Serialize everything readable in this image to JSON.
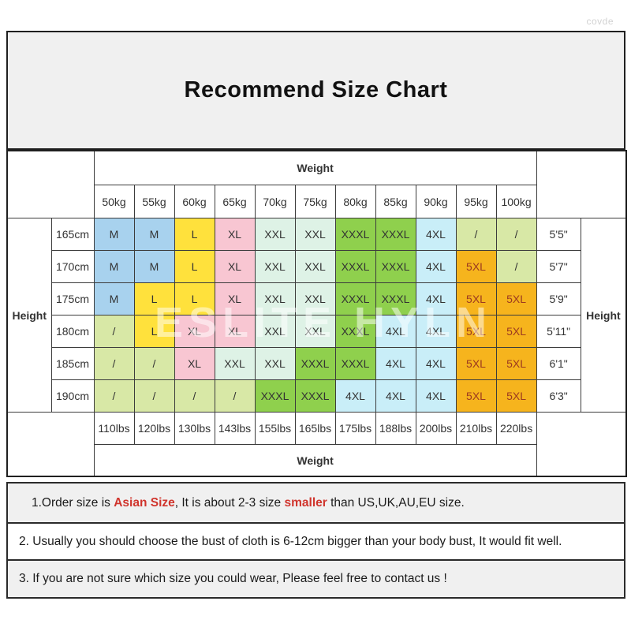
{
  "title": "Recommend Size Chart",
  "watermarks": {
    "corner": "covde",
    "center": "ESLITE HYLN"
  },
  "table": {
    "weight_header": "Weight",
    "weight_footer": "Weight",
    "height_label_left": "Height",
    "height_label_right": "Height",
    "weights_kg": [
      "50kg",
      "55kg",
      "60kg",
      "65kg",
      "70kg",
      "75kg",
      "80kg",
      "85kg",
      "90kg",
      "95kg",
      "100kg"
    ],
    "weights_lbs": [
      "110lbs",
      "120lbs",
      "130lbs",
      "143lbs",
      "155lbs",
      "165lbs",
      "175lbs",
      "188lbs",
      "200lbs",
      "210lbs",
      "220lbs"
    ],
    "rows": [
      {
        "height_cm": "165cm",
        "height_ft": "5'5\"",
        "sizes": [
          "M",
          "M",
          "L",
          "XL",
          "XXL",
          "XXL",
          "XXXL",
          "XXXL",
          "4XL",
          "/",
          "/"
        ]
      },
      {
        "height_cm": "170cm",
        "height_ft": "5'7\"",
        "sizes": [
          "M",
          "M",
          "L",
          "XL",
          "XXL",
          "XXL",
          "XXXL",
          "XXXL",
          "4XL",
          "5XL",
          "/"
        ]
      },
      {
        "height_cm": "175cm",
        "height_ft": "5'9\"",
        "sizes": [
          "M",
          "L",
          "L",
          "XL",
          "XXL",
          "XXL",
          "XXXL",
          "XXXL",
          "4XL",
          "5XL",
          "5XL"
        ]
      },
      {
        "height_cm": "180cm",
        "height_ft": "5'11\"",
        "sizes": [
          "/",
          "L",
          "XL",
          "XL",
          "XXL",
          "XXL",
          "XXXL",
          "4XL",
          "4XL",
          "5XL",
          "5XL"
        ]
      },
      {
        "height_cm": "185cm",
        "height_ft": "6'1\"",
        "sizes": [
          "/",
          "/",
          "XL",
          "XXL",
          "XXL",
          "XXXL",
          "XXXL",
          "4XL",
          "4XL",
          "5XL",
          "5XL"
        ]
      },
      {
        "height_cm": "190cm",
        "height_ft": "6'3\"",
        "sizes": [
          "/",
          "/",
          "/",
          "/",
          "XXXL",
          "XXXL",
          "4XL",
          "4XL",
          "4XL",
          "5XL",
          "5XL"
        ]
      }
    ]
  },
  "size_colors": {
    "M": "#a8d2ee",
    "L": "#ffe13c",
    "XL": "#f8c6d2",
    "XXL": "#def2e6",
    "XXXL": "#8fd04d",
    "4XL": "#c9eef8",
    "5XL": "#f6b41d",
    "/": "#d8e8a6"
  },
  "size_text_colors": {
    "default": "#333333",
    "5XL": "#9c3a20"
  },
  "notes": [
    [
      {
        "t": "1.Order size is "
      },
      {
        "t": "Asian Size",
        "red": true
      },
      {
        "t": ", It is about 2-3 size "
      },
      {
        "t": "smaller",
        "red": true
      },
      {
        "t": " than US,UK,AU,EU size."
      }
    ],
    [
      {
        "t": "2. Usually you should choose the bust of cloth is 6-12cm bigger than your body bust, It would fit well."
      }
    ],
    [
      {
        "t": "3. If you are not sure which size you could wear, Please feel free to contact us !"
      }
    ]
  ]
}
